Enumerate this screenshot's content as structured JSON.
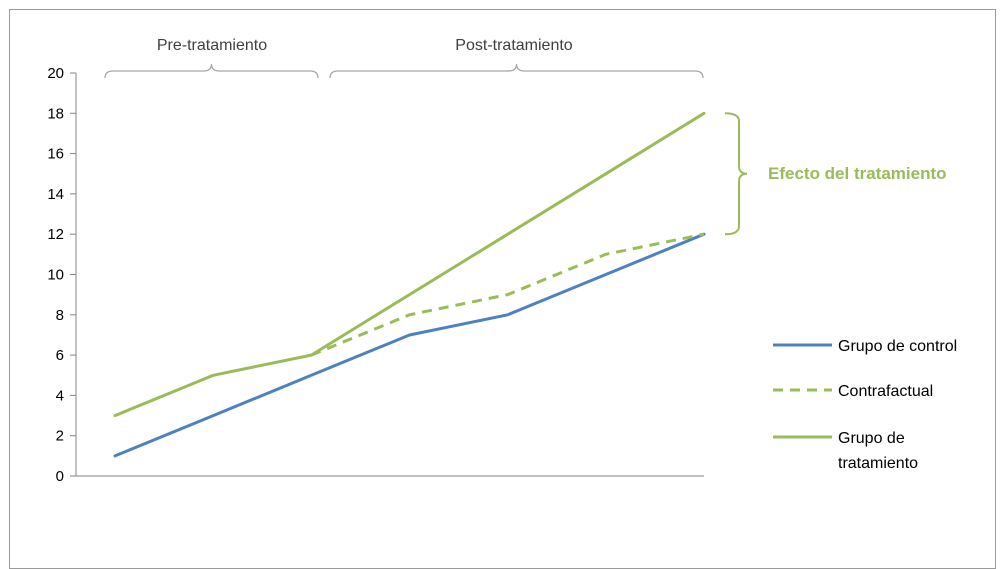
{
  "chart_data": {
    "type": "line",
    "x": [
      1,
      2,
      3,
      4,
      5,
      6,
      7
    ],
    "ylim": [
      0,
      20
    ],
    "y_ticks": [
      "0",
      "2",
      "4",
      "6",
      "8",
      "10",
      "12",
      "14",
      "16",
      "18",
      "20"
    ],
    "grid": false,
    "legend_position": "right",
    "series": [
      {
        "name": "Grupo de control",
        "values": [
          1,
          3,
          5,
          7,
          8,
          10,
          12
        ],
        "color": "#4f81bd",
        "style": "solid"
      },
      {
        "name": "Contrafactual",
        "values": [
          null,
          null,
          6,
          8,
          9,
          11,
          12
        ],
        "color": "#9bbb59",
        "style": "dashed"
      },
      {
        "name": "Grupo de tratamiento",
        "values": [
          3,
          5,
          6,
          9,
          12,
          15,
          18
        ],
        "color": "#9bbb59",
        "style": "solid"
      }
    ],
    "annotations": {
      "pre_period": "Pre-tratamiento",
      "post_period": "Post-tratamiento",
      "effect": "Efecto del tratamiento",
      "effect_color": "#9bbb59"
    }
  }
}
